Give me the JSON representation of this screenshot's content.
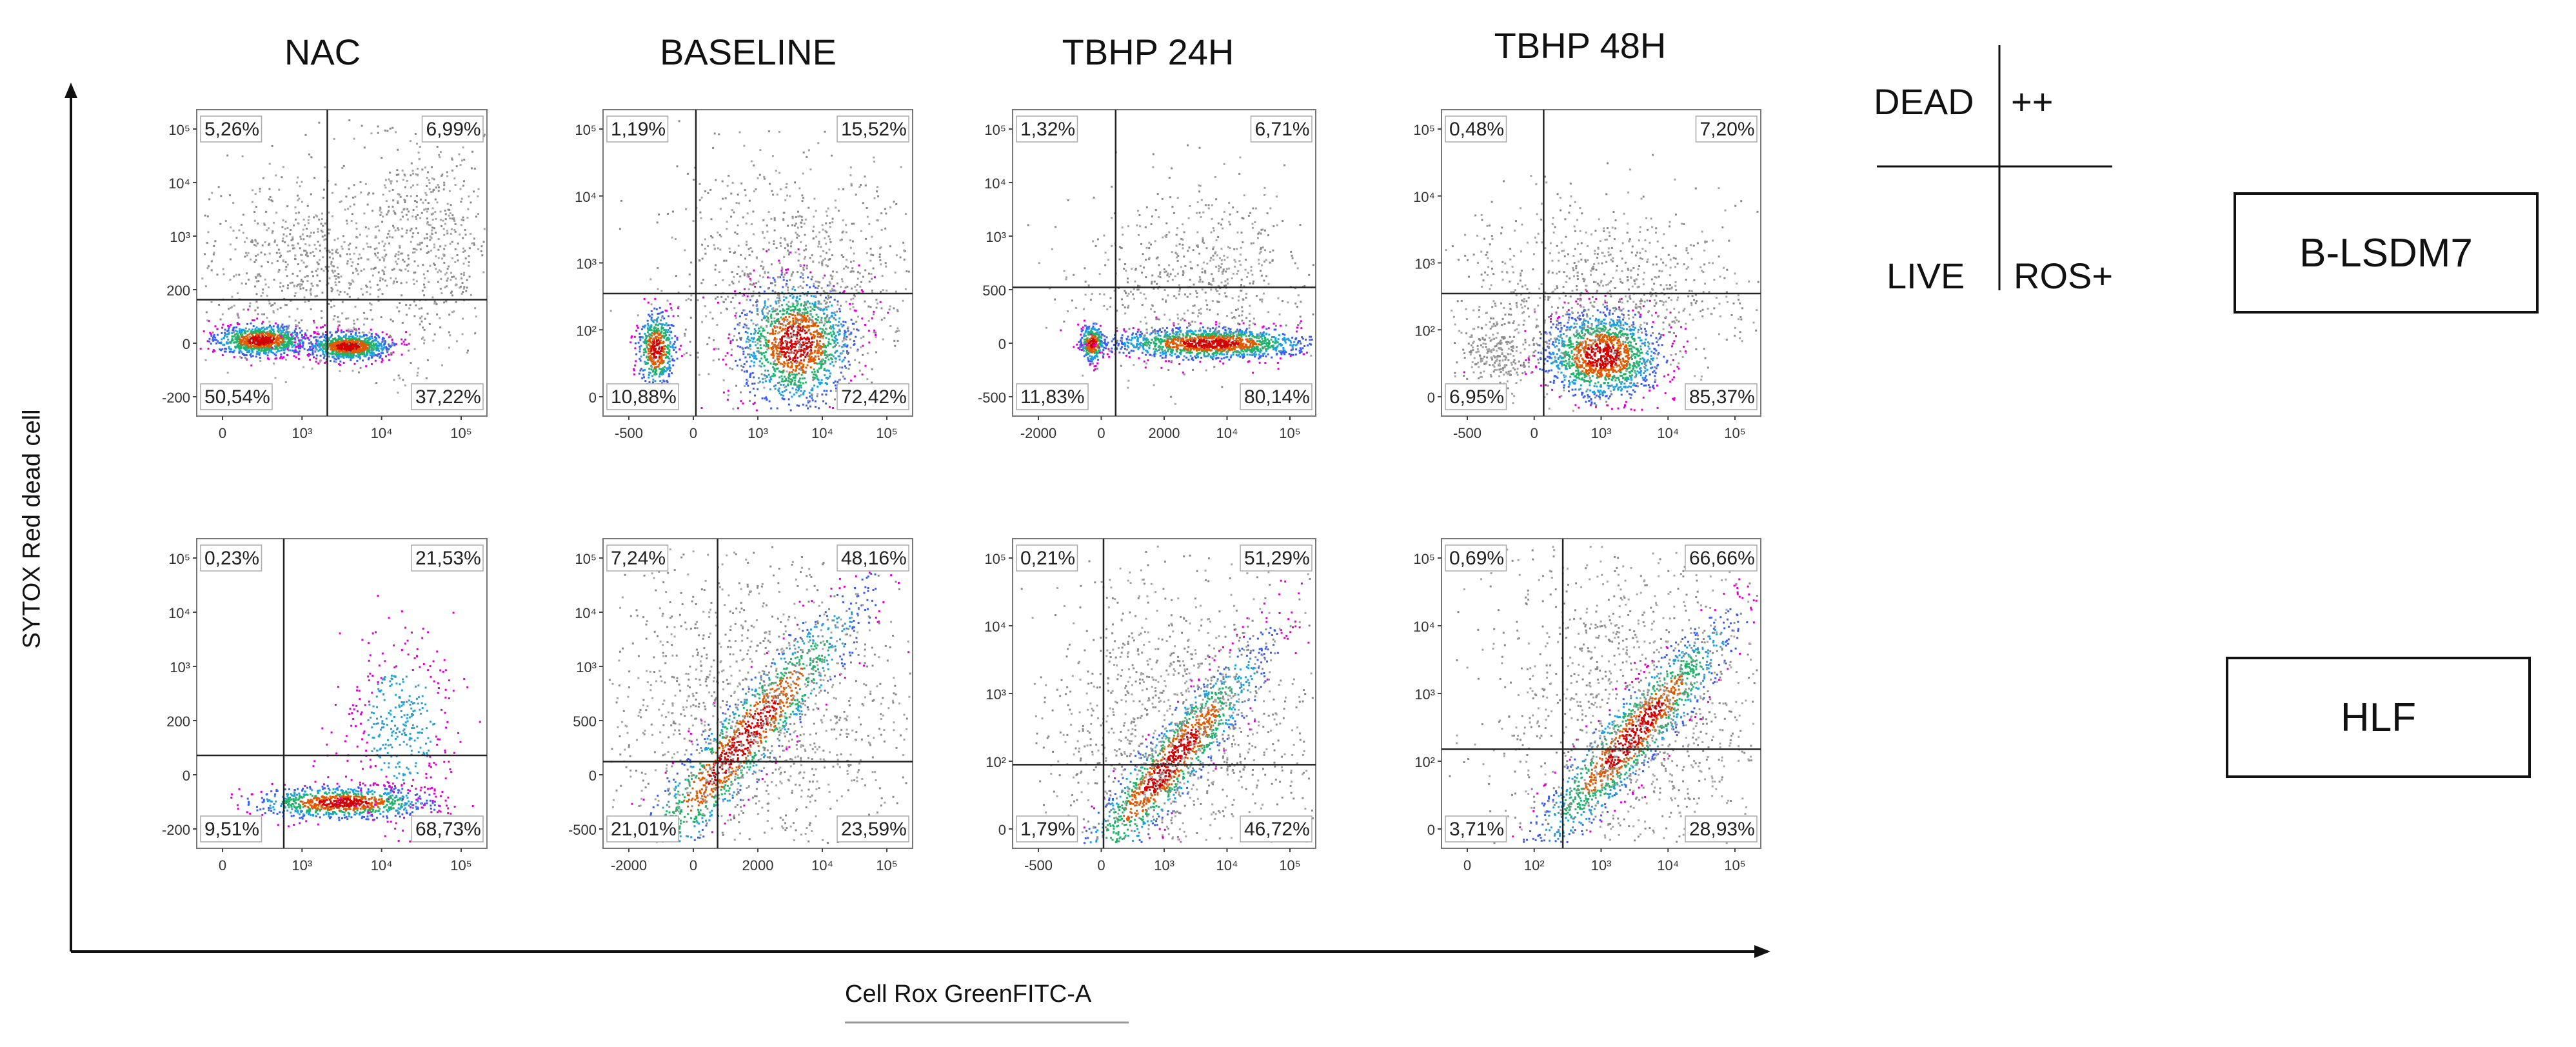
{
  "chart_data": {
    "type": "scatter",
    "subtype": "flow-cytometry-density-grid",
    "columns": [
      "NAC",
      "BASELINE",
      "TBHP 24H",
      "TBHP 48H"
    ],
    "rows": [
      "B-LSDM7",
      "HLF"
    ],
    "xlabel": "Cell Rox GreenFITC-A",
    "ylabel": "SYTOX Red dead cell",
    "legend": {
      "top_left": "DEAD",
      "top_right": "++",
      "bottom_left": "LIVE",
      "bottom_right": "ROS+"
    },
    "panels": [
      {
        "row": "B-LSDM7",
        "column": "NAC",
        "quadrants": {
          "UL": "5,26%",
          "UR": "6,99%",
          "LL": "50,54%",
          "LR": "37,22%"
        },
        "x_ticks": [
          "0",
          "10³",
          "10⁴",
          "10⁵"
        ],
        "y_ticks": [
          "10⁵",
          "10⁴",
          "10³",
          "200",
          "0",
          "-200"
        ],
        "gate": {
          "x": 0.45,
          "y": 0.62
        },
        "populations": [
          {
            "cx": 0.22,
            "cy": 0.75,
            "sx": 0.08,
            "sy": 0.025,
            "n": 900
          },
          {
            "cx": 0.52,
            "cy": 0.77,
            "sx": 0.07,
            "sy": 0.022,
            "n": 900
          },
          {
            "cx": 0.78,
            "cy": 0.42,
            "sx": 0.12,
            "sy": 0.2,
            "n": 500,
            "gray": true
          },
          {
            "cx": 0.4,
            "cy": 0.5,
            "sx": 0.2,
            "sy": 0.15,
            "n": 700,
            "gray": true
          }
        ]
      },
      {
        "row": "B-LSDM7",
        "column": "BASELINE",
        "quadrants": {
          "UL": "1,19%",
          "UR": "15,52%",
          "LL": "10,88%",
          "LR": "72,42%"
        },
        "x_ticks": [
          "-500",
          "0",
          "10³",
          "10⁴",
          "10⁵"
        ],
        "y_ticks": [
          "10⁵",
          "10⁴",
          "10³",
          "10²",
          "0"
        ],
        "gate": {
          "x": 0.3,
          "y": 0.6
        },
        "populations": [
          {
            "cx": 0.17,
            "cy": 0.78,
            "sx": 0.03,
            "sy": 0.06,
            "n": 500
          },
          {
            "cx": 0.62,
            "cy": 0.76,
            "sx": 0.09,
            "sy": 0.1,
            "n": 1300
          },
          {
            "cx": 0.62,
            "cy": 0.55,
            "sx": 0.22,
            "sy": 0.2,
            "n": 900,
            "gray": true
          }
        ]
      },
      {
        "row": "B-LSDM7",
        "column": "TBHP 24H",
        "quadrants": {
          "UL": "1,32%",
          "UR": "6,71%",
          "LL": "11,83%",
          "LR": "80,14%"
        },
        "x_ticks": [
          "-2000",
          "0",
          "2000",
          "10⁴",
          "10⁵"
        ],
        "y_ticks": [
          "10⁵",
          "10⁴",
          "10³",
          "500",
          "0",
          "-500"
        ],
        "gate": {
          "x": 0.34,
          "y": 0.58
        },
        "populations": [
          {
            "cx": 0.26,
            "cy": 0.76,
            "sx": 0.02,
            "sy": 0.03,
            "n": 300
          },
          {
            "cx": 0.65,
            "cy": 0.76,
            "sx": 0.16,
            "sy": 0.025,
            "n": 1400
          },
          {
            "cx": 0.6,
            "cy": 0.55,
            "sx": 0.2,
            "sy": 0.15,
            "n": 600,
            "gray": true
          }
        ]
      },
      {
        "row": "B-LSDM7",
        "column": "TBHP 48H",
        "quadrants": {
          "UL": "0,48%",
          "UR": "7,20%",
          "LL": "6,95%",
          "LR": "85,37%"
        },
        "x_ticks": [
          "-500",
          "0",
          "10³",
          "10⁴",
          "10⁵"
        ],
        "y_ticks": [
          "10⁵",
          "10⁴",
          "10³",
          "10²",
          "0"
        ],
        "gate": {
          "x": 0.32,
          "y": 0.6
        },
        "populations": [
          {
            "cx": 0.5,
            "cy": 0.8,
            "sx": 0.09,
            "sy": 0.07,
            "n": 1400
          },
          {
            "cx": 0.5,
            "cy": 0.6,
            "sx": 0.25,
            "sy": 0.15,
            "n": 900,
            "gray": true
          },
          {
            "cx": 0.16,
            "cy": 0.8,
            "sx": 0.05,
            "sy": 0.05,
            "n": 200,
            "gray": true
          }
        ]
      },
      {
        "row": "HLF",
        "column": "NAC",
        "quadrants": {
          "UL": "0,23%",
          "UR": "21,53%",
          "LL": "9,51%",
          "LR": "68,73%"
        },
        "x_ticks": [
          "0",
          "10³",
          "10⁴",
          "10⁵"
        ],
        "y_ticks": [
          "10⁵",
          "10⁴",
          "10³",
          "200",
          "0",
          "-200"
        ],
        "gate": {
          "x": 0.3,
          "y": 0.7
        },
        "populations": [
          {
            "cx": 0.5,
            "cy": 0.85,
            "sx": 0.15,
            "sy": 0.025,
            "n": 900
          },
          {
            "cx": 0.7,
            "cy": 0.6,
            "sx": 0.1,
            "sy": 0.15,
            "n": 400,
            "magenta": true
          }
        ]
      },
      {
        "row": "HLF",
        "column": "BASELINE",
        "quadrants": {
          "UL": "7,24%",
          "UR": "48,16%",
          "LL": "21,01%",
          "LR": "23,59%"
        },
        "x_ticks": [
          "-2000",
          "0",
          "2000",
          "10⁴",
          "10⁵"
        ],
        "y_ticks": [
          "10⁵",
          "10⁴",
          "10³",
          "500",
          "0",
          "-500"
        ],
        "gate": {
          "x": 0.37,
          "y": 0.72
        },
        "populations": [
          {
            "cx": 0.45,
            "cy": 0.65,
            "sx": 0.15,
            "sy": 0.15,
            "n": 1300,
            "diag": true
          },
          {
            "cx": 0.5,
            "cy": 0.55,
            "sx": 0.28,
            "sy": 0.25,
            "n": 1300,
            "gray": true
          }
        ]
      },
      {
        "row": "HLF",
        "column": "TBHP 24H",
        "quadrants": {
          "UL": "0,21%",
          "UR": "51,29%",
          "LL": "1,79%",
          "LR": "46,72%"
        },
        "x_ticks": [
          "-500",
          "0",
          "10³",
          "10⁴",
          "10⁵"
        ],
        "y_ticks": [
          "10⁵",
          "10⁴",
          "10³",
          "10²",
          "0"
        ],
        "gate": {
          "x": 0.3,
          "y": 0.73
        },
        "populations": [
          {
            "cx": 0.52,
            "cy": 0.72,
            "sx": 0.12,
            "sy": 0.15,
            "n": 1300,
            "diag": true
          },
          {
            "cx": 0.55,
            "cy": 0.6,
            "sx": 0.22,
            "sy": 0.25,
            "n": 1200,
            "gray": true
          }
        ]
      },
      {
        "row": "HLF",
        "column": "TBHP 48H",
        "quadrants": {
          "UL": "0,69%",
          "UR": "66,66%",
          "LL": "3,71%",
          "LR": "28,93%"
        },
        "x_ticks": [
          "0",
          "10²",
          "10³",
          "10⁴",
          "10⁵"
        ],
        "y_ticks": [
          "10⁵",
          "10⁴",
          "10³",
          "10²",
          "0"
        ],
        "gate": {
          "x": 0.38,
          "y": 0.68
        },
        "populations": [
          {
            "cx": 0.6,
            "cy": 0.63,
            "sx": 0.12,
            "sy": 0.15,
            "n": 1300,
            "diag": true
          },
          {
            "cx": 0.6,
            "cy": 0.55,
            "sx": 0.24,
            "sy": 0.28,
            "n": 1300,
            "gray": true
          }
        ]
      }
    ]
  }
}
